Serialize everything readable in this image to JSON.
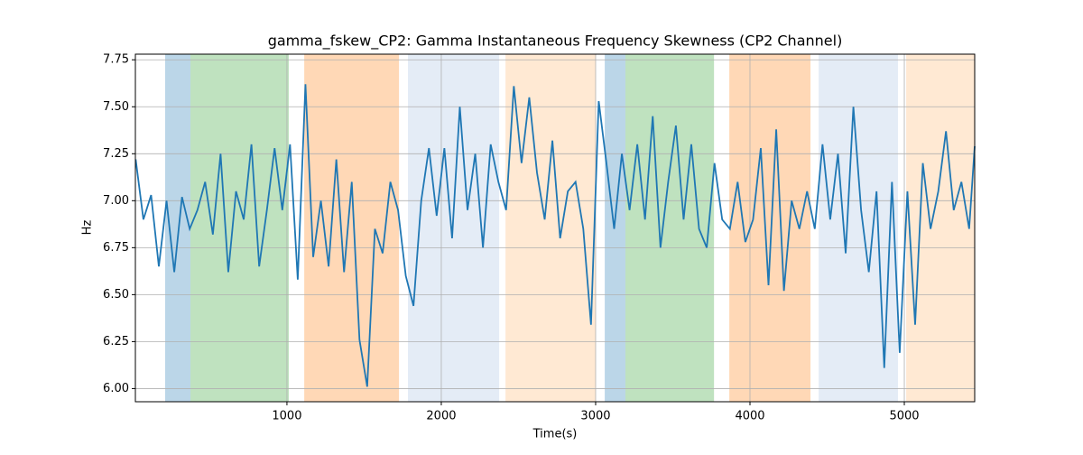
{
  "chart_data": {
    "type": "line",
    "title": "gamma_fskew_CP2: Gamma Instantaneous Frequency Skewness (CP2 Channel)",
    "x_label": "Time(s)",
    "y_label": "Hz",
    "xlim": [
      18,
      5456
    ],
    "ylim": [
      5.93,
      7.78
    ],
    "xticks": [
      1000,
      2000,
      3000,
      4000,
      5000
    ],
    "yticks": [
      {
        "value": 6,
        "label": "6.00"
      },
      {
        "value": 6.25,
        "label": "6.25"
      },
      {
        "value": 6.5,
        "label": "6.50"
      },
      {
        "value": 6.75,
        "label": "6.75"
      },
      {
        "value": 7,
        "label": "7.00"
      },
      {
        "value": 7.25,
        "label": "7.25"
      },
      {
        "value": 7.5,
        "label": "7.50"
      },
      {
        "value": 7.75,
        "label": "7.75"
      }
    ],
    "grid": true,
    "span_alpha": 0.3,
    "spans": [
      {
        "start": 211,
        "end": 375,
        "color": "#1f77b4"
      },
      {
        "start": 375,
        "end": 1012,
        "color": "#2ca02c"
      },
      {
        "start": 1112,
        "end": 1726,
        "color": "#ff7f0e"
      },
      {
        "start": 1784,
        "end": 2375,
        "color": "#a5c0e1"
      },
      {
        "start": 2416,
        "end": 3000,
        "color": "#ffb76e"
      },
      {
        "start": 3059,
        "end": 3193,
        "color": "#1f77b4"
      },
      {
        "start": 3193,
        "end": 3767,
        "color": "#2ca02c"
      },
      {
        "start": 3866,
        "end": 4392,
        "color": "#ff7f0e"
      },
      {
        "start": 4445,
        "end": 4959,
        "color": "#a5c0e1"
      },
      {
        "start": 5012,
        "end": 5456,
        "color": "#ffb76e"
      }
    ],
    "series": [
      {
        "color": "#1f77b4",
        "x": [
          20,
          70,
          120,
          170,
          220,
          270,
          320,
          370,
          420,
          470,
          520,
          570,
          620,
          670,
          720,
          770,
          820,
          870,
          920,
          970,
          1020,
          1070,
          1120,
          1170,
          1220,
          1270,
          1320,
          1370,
          1420,
          1470,
          1520,
          1570,
          1620,
          1670,
          1720,
          1770,
          1820,
          1870,
          1920,
          1970,
          2020,
          2070,
          2120,
          2170,
          2220,
          2270,
          2320,
          2370,
          2420,
          2470,
          2520,
          2570,
          2620,
          2670,
          2720,
          2770,
          2820,
          2870,
          2920,
          2970,
          3020,
          3070,
          3120,
          3170,
          3220,
          3270,
          3320,
          3370,
          3420,
          3470,
          3520,
          3570,
          3620,
          3670,
          3720,
          3770,
          3820,
          3870,
          3920,
          3970,
          4020,
          4070,
          4120,
          4170,
          4220,
          4270,
          4320,
          4370,
          4420,
          4470,
          4520,
          4570,
          4620,
          4670,
          4720,
          4770,
          4820,
          4870,
          4920,
          4970,
          5020,
          5070,
          5120,
          5170,
          5220,
          5270,
          5320,
          5370,
          5420,
          5456
        ],
        "values": [
          7.22,
          6.9,
          7.03,
          6.65,
          7.0,
          6.62,
          7.02,
          6.85,
          6.95,
          7.1,
          6.82,
          7.25,
          6.62,
          7.05,
          6.9,
          7.3,
          6.65,
          6.95,
          7.28,
          6.95,
          7.3,
          6.58,
          7.62,
          6.7,
          7.0,
          6.65,
          7.22,
          6.62,
          7.1,
          6.26,
          6.01,
          6.85,
          6.72,
          7.1,
          6.95,
          6.6,
          6.44,
          7.0,
          7.28,
          6.92,
          7.28,
          6.8,
          7.5,
          6.95,
          7.25,
          6.75,
          7.3,
          7.1,
          6.95,
          7.61,
          7.2,
          7.55,
          7.15,
          6.9,
          7.32,
          6.8,
          7.05,
          7.1,
          6.85,
          6.34,
          7.53,
          7.2,
          6.85,
          7.25,
          6.95,
          7.3,
          6.9,
          7.45,
          6.75,
          7.1,
          7.4,
          6.9,
          7.3,
          6.85,
          6.75,
          7.2,
          6.9,
          6.85,
          7.1,
          6.78,
          6.9,
          7.28,
          6.55,
          7.38,
          6.52,
          7.0,
          6.85,
          7.05,
          6.85,
          7.3,
          6.9,
          7.25,
          6.72,
          7.5,
          6.95,
          6.62,
          7.05,
          6.11,
          7.1,
          6.19,
          7.05,
          6.34,
          7.2,
          6.85,
          7.05,
          7.37,
          6.95,
          7.1,
          6.85,
          7.29
        ]
      }
    ]
  }
}
